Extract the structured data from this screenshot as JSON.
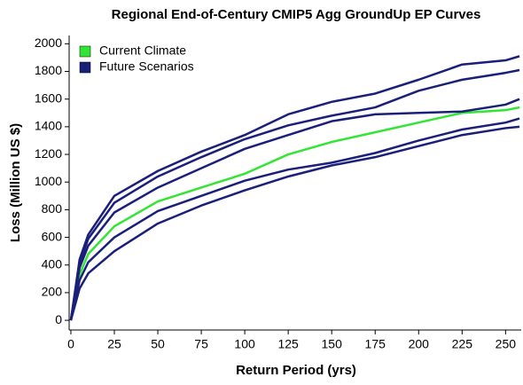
{
  "chart_data": {
    "type": "line",
    "title": "Regional End-of-Century CMIP5 Agg GroundUp EP Curves",
    "x_label": "Return Period (yrs)",
    "y_label": "Loss (Million US $)",
    "x": [
      0,
      5,
      10,
      25,
      50,
      75,
      100,
      125,
      150,
      175,
      200,
      225,
      250,
      258
    ],
    "series": [
      {
        "name": "Current Climate",
        "color": "#33e533",
        "curves": [
          {
            "values": [
              0,
              330,
              480,
              680,
              860,
              960,
              1060,
              1200,
              1290,
              1360,
              1430,
              1500,
              1520,
              1540
            ]
          }
        ]
      },
      {
        "name": "Future Scenarios",
        "color": "#1a1f7a",
        "curves": [
          {
            "values": [
              0,
              440,
              620,
              900,
              1080,
              1220,
              1340,
              1490,
              1580,
              1640,
              1740,
              1850,
              1880,
              1910
            ]
          },
          {
            "values": [
              0,
              410,
              590,
              850,
              1040,
              1180,
              1310,
              1410,
              1480,
              1540,
              1660,
              1740,
              1790,
              1810
            ]
          },
          {
            "values": [
              0,
              380,
              540,
              780,
              960,
              1100,
              1240,
              1340,
              1440,
              1490,
              1500,
              1510,
              1560,
              1600
            ]
          },
          {
            "values": [
              0,
              290,
              420,
              600,
              790,
              900,
              1010,
              1090,
              1140,
              1210,
              1300,
              1380,
              1430,
              1460
            ]
          },
          {
            "values": [
              0,
              230,
              340,
              500,
              700,
              830,
              940,
              1040,
              1120,
              1180,
              1260,
              1340,
              1390,
              1400
            ]
          }
        ]
      }
    ],
    "xlim": [
      -1,
      259
    ],
    "xticks": [
      0,
      25,
      50,
      75,
      100,
      125,
      150,
      175,
      200,
      225,
      250
    ],
    "ylim": [
      -70,
      2060
    ],
    "yticks": [
      0,
      200,
      400,
      600,
      800,
      1000,
      1200,
      1400,
      1600,
      1800,
      2000
    ],
    "legend": "upper left"
  }
}
